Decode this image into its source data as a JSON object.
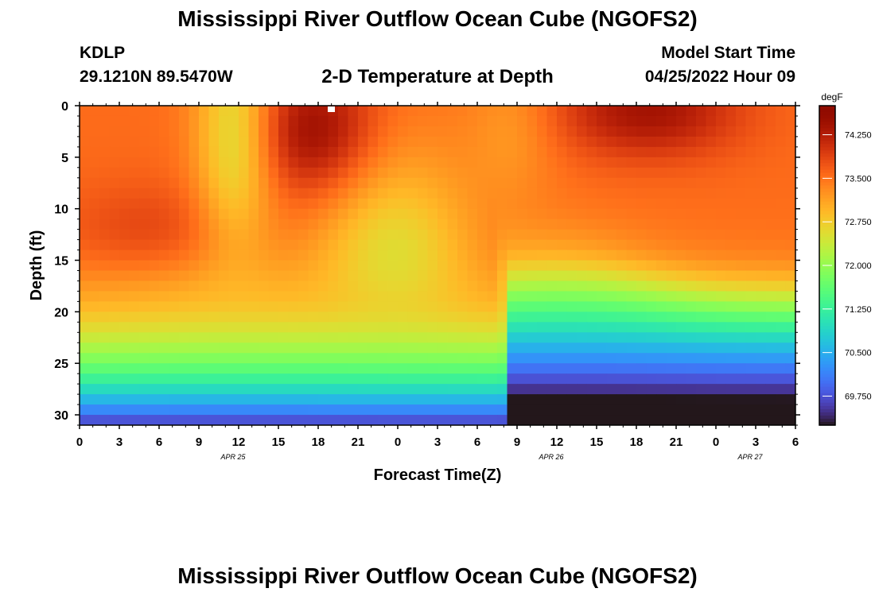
{
  "header": {
    "title": "Mississippi River Outflow Ocean Cube (NGOFS2)",
    "station": "KDLP",
    "coords": "29.1210N  89.5470W",
    "subtitle": "2-D Temperature at Depth",
    "start_label": "Model Start Time",
    "start_value": "04/25/2022 Hour 09"
  },
  "footer": {
    "title": "Mississippi River Outflow Ocean Cube (NGOFS2)"
  },
  "chart_data": {
    "type": "heatmap",
    "title": "2-D Temperature at Depth",
    "xlabel": "Forecast Time(Z)",
    "ylabel": "Depth (ft)",
    "x_tick_labels": [
      "0",
      "3",
      "6",
      "9",
      "12",
      "15",
      "18",
      "21",
      "0",
      "3",
      "6",
      "9",
      "12",
      "15",
      "18",
      "21",
      "0",
      "3",
      "6"
    ],
    "date_labels": [
      {
        "label": "APR 25",
        "at_tick": 4
      },
      {
        "label": "APR 26",
        "at_tick": 12
      },
      {
        "label": "APR 27",
        "at_tick": 17
      }
    ],
    "ylim": [
      0,
      31
    ],
    "y_ticks": [
      0,
      5,
      10,
      15,
      20,
      25,
      30
    ],
    "y_reversed": true,
    "colorbar": {
      "unit": "degF",
      "min": 69.25,
      "max": 74.75,
      "ticks": [
        "74.250",
        "73.500",
        "72.750",
        "72.000",
        "71.250",
        "70.500",
        "69.750"
      ],
      "colormap": "turbo"
    },
    "grid": false,
    "note_text": ""
  }
}
